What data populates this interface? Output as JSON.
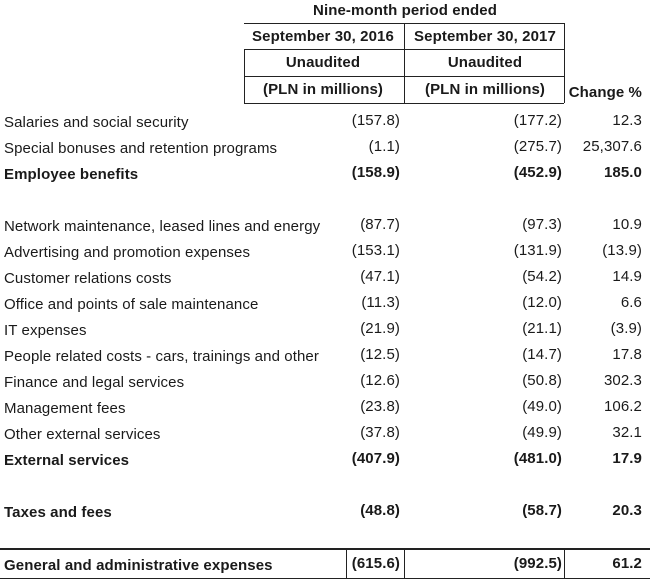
{
  "header": {
    "period_title": "Nine-month period ended",
    "col_2016": "September 30, 2016",
    "col_2017": "September 30, 2017",
    "unaudited_2016": "Unaudited",
    "unaudited_2017": "Unaudited",
    "units_2016": "(PLN in millions)",
    "units_2017": "(PLN in millions)",
    "change": "Change %"
  },
  "rows": [
    {
      "label": "Salaries and social security",
      "v2016": "(157.8)",
      "v2017": "(177.2)",
      "change": "12.3"
    },
    {
      "label": "Special bonuses and retention programs",
      "v2016": "(1.1)",
      "v2017": "(275.7)",
      "change": "25,307.6"
    },
    {
      "label": "Employee benefits",
      "v2016": "(158.9)",
      "v2017": "(452.9)",
      "change": "185.0"
    },
    {
      "label": "Network maintenance, leased lines and energy",
      "v2016": "(87.7)",
      "v2017": "(97.3)",
      "change": "10.9"
    },
    {
      "label": "Advertising and promotion expenses",
      "v2016": "(153.1)",
      "v2017": "(131.9)",
      "change": "(13.9)"
    },
    {
      "label": "Customer relations costs",
      "v2016": "(47.1)",
      "v2017": "(54.2)",
      "change": "14.9"
    },
    {
      "label": "Office and points of sale maintenance",
      "v2016": "(11.3)",
      "v2017": "(12.0)",
      "change": "6.6"
    },
    {
      "label": "IT expenses",
      "v2016": "(21.9)",
      "v2017": "(21.1)",
      "change": "(3.9)"
    },
    {
      "label": "People related costs - cars, trainings and other",
      "v2016": "(12.5)",
      "v2017": "(14.7)",
      "change": "17.8"
    },
    {
      "label": "Finance and legal services",
      "v2016": "(12.6)",
      "v2017": "(50.8)",
      "change": "302.3"
    },
    {
      "label": "Management fees",
      "v2016": "(23.8)",
      "v2017": "(49.0)",
      "change": "106.2"
    },
    {
      "label": "Other external services",
      "v2016": "(37.8)",
      "v2017": "(49.9)",
      "change": "32.1"
    },
    {
      "label": "External services",
      "v2016": "(407.9)",
      "v2017": "(481.0)",
      "change": "17.9"
    },
    {
      "label": "Taxes and fees",
      "v2016": "(48.8)",
      "v2017": "(58.7)",
      "change": "20.3"
    },
    {
      "label": "General and administrative expenses",
      "v2016": "(615.6)",
      "v2017": "(992.5)",
      "change": "61.2"
    }
  ]
}
